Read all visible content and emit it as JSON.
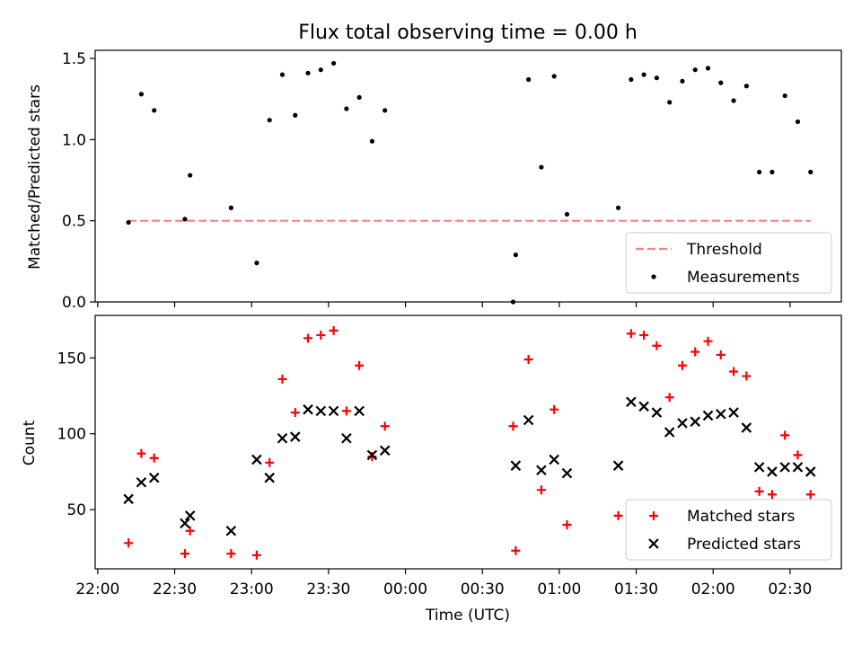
{
  "chart_data": [
    {
      "type": "scatter",
      "title": "Flux total observing time = 0.00 h",
      "xlabel": "",
      "ylabel": "Matched/Predicted stars",
      "ylim": [
        0,
        1.55
      ],
      "xlim": [
        "21:59",
        "02:50"
      ],
      "yticks": [
        "0.0",
        "0.5",
        "1.0",
        "1.5"
      ],
      "legend_position": "lower-right",
      "series": [
        {
          "name": "Threshold",
          "style": "dashed-line",
          "color": "#ff8080",
          "points": [
            [
              "22:12",
              0.5
            ],
            [
              "02:38",
              0.5
            ]
          ]
        },
        {
          "name": "Measurements",
          "style": "dot",
          "color": "#000000",
          "points": [
            [
              "22:12",
              0.49
            ],
            [
              "22:17",
              1.28
            ],
            [
              "22:22",
              1.18
            ],
            [
              "22:34",
              0.51
            ],
            [
              "22:36",
              0.78
            ],
            [
              "22:52",
              0.58
            ],
            [
              "23:02",
              0.24
            ],
            [
              "23:07",
              1.12
            ],
            [
              "23:12",
              1.4
            ],
            [
              "23:17",
              1.15
            ],
            [
              "23:22",
              1.41
            ],
            [
              "23:27",
              1.43
            ],
            [
              "23:32",
              1.47
            ],
            [
              "23:37",
              1.19
            ],
            [
              "23:42",
              1.26
            ],
            [
              "23:47",
              0.99
            ],
            [
              "23:52",
              1.18
            ],
            [
              "00:42",
              0.0
            ],
            [
              "00:43",
              0.29
            ],
            [
              "00:48",
              1.37
            ],
            [
              "00:53",
              0.83
            ],
            [
              "00:58",
              1.39
            ],
            [
              "01:03",
              0.54
            ],
            [
              "01:23",
              0.58
            ],
            [
              "01:28",
              1.37
            ],
            [
              "01:33",
              1.4
            ],
            [
              "01:38",
              1.38
            ],
            [
              "01:43",
              1.23
            ],
            [
              "01:48",
              1.36
            ],
            [
              "01:53",
              1.43
            ],
            [
              "01:58",
              1.44
            ],
            [
              "02:03",
              1.35
            ],
            [
              "02:08",
              1.24
            ],
            [
              "02:13",
              1.33
            ],
            [
              "02:18",
              0.8
            ],
            [
              "02:23",
              0.8
            ],
            [
              "02:28",
              1.27
            ],
            [
              "02:33",
              1.11
            ],
            [
              "02:38",
              0.8
            ]
          ]
        }
      ]
    },
    {
      "type": "scatter",
      "title": "",
      "xlabel": "Time (UTC)",
      "ylabel": "Count",
      "ylim": [
        11,
        178
      ],
      "xlim": [
        "21:59",
        "02:50"
      ],
      "yticks": [
        "50",
        "100",
        "150"
      ],
      "xticks": [
        "22:00",
        "22:30",
        "23:00",
        "23:30",
        "00:00",
        "00:30",
        "01:00",
        "01:30",
        "02:00",
        "02:30"
      ],
      "legend_position": "lower-right",
      "series": [
        {
          "name": "Matched stars",
          "style": "plus",
          "color": "#ff0000",
          "points": [
            [
              "22:12",
              28
            ],
            [
              "22:17",
              87
            ],
            [
              "22:22",
              84
            ],
            [
              "22:34",
              21
            ],
            [
              "22:36",
              36
            ],
            [
              "22:52",
              21
            ],
            [
              "23:02",
              20
            ],
            [
              "23:07",
              81
            ],
            [
              "23:12",
              136
            ],
            [
              "23:17",
              114
            ],
            [
              "23:22",
              163
            ],
            [
              "23:27",
              165
            ],
            [
              "23:32",
              168
            ],
            [
              "23:37",
              115
            ],
            [
              "23:42",
              145
            ],
            [
              "23:47",
              85
            ],
            [
              "23:52",
              105
            ],
            [
              "00:42",
              105
            ],
            [
              "00:43",
              23
            ],
            [
              "00:48",
              149
            ],
            [
              "00:53",
              63
            ],
            [
              "00:58",
              116
            ],
            [
              "01:03",
              40
            ],
            [
              "01:23",
              46
            ],
            [
              "01:28",
              166
            ],
            [
              "01:33",
              165
            ],
            [
              "01:38",
              158
            ],
            [
              "01:43",
              124
            ],
            [
              "01:48",
              145
            ],
            [
              "01:53",
              154
            ],
            [
              "01:58",
              161
            ],
            [
              "02:03",
              152
            ],
            [
              "02:08",
              141
            ],
            [
              "02:13",
              138
            ],
            [
              "02:18",
              62
            ],
            [
              "02:23",
              60
            ],
            [
              "02:28",
              99
            ],
            [
              "02:33",
              86
            ],
            [
              "02:38",
              60
            ]
          ]
        },
        {
          "name": "Predicted stars",
          "style": "x",
          "color": "#000000",
          "points": [
            [
              "22:12",
              57
            ],
            [
              "22:17",
              68
            ],
            [
              "22:22",
              71
            ],
            [
              "22:34",
              41
            ],
            [
              "22:36",
              46
            ],
            [
              "22:52",
              36
            ],
            [
              "23:02",
              83
            ],
            [
              "23:07",
              71
            ],
            [
              "23:12",
              97
            ],
            [
              "23:17",
              98
            ],
            [
              "23:22",
              116
            ],
            [
              "23:27",
              115
            ],
            [
              "23:32",
              115
            ],
            [
              "23:37",
              97
            ],
            [
              "23:42",
              115
            ],
            [
              "23:47",
              86
            ],
            [
              "23:52",
              89
            ],
            [
              "00:43",
              79
            ],
            [
              "00:48",
              109
            ],
            [
              "00:53",
              76
            ],
            [
              "00:58",
              83
            ],
            [
              "01:03",
              74
            ],
            [
              "01:23",
              79
            ],
            [
              "01:28",
              121
            ],
            [
              "01:33",
              118
            ],
            [
              "01:38",
              114
            ],
            [
              "01:43",
              101
            ],
            [
              "01:48",
              107
            ],
            [
              "01:53",
              108
            ],
            [
              "01:58",
              112
            ],
            [
              "02:03",
              113
            ],
            [
              "02:08",
              114
            ],
            [
              "02:13",
              104
            ],
            [
              "02:18",
              78
            ],
            [
              "02:23",
              75
            ],
            [
              "02:28",
              78
            ],
            [
              "02:33",
              78
            ],
            [
              "02:38",
              75
            ]
          ]
        }
      ]
    }
  ]
}
